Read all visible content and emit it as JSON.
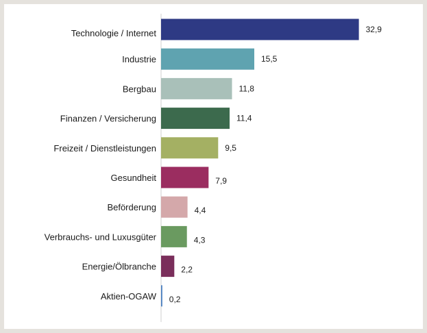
{
  "chart_data": {
    "type": "bar",
    "orientation": "horizontal",
    "title": "",
    "xlabel": "",
    "ylabel": "",
    "xlim": [
      0,
      35
    ],
    "grid": false,
    "legend": "none",
    "categories": [
      "Technologie / Internet",
      "Industrie",
      "Bergbau",
      "Finanzen / Versicherung",
      "Freizeit / Dienstleistungen",
      "Gesundheit",
      "Beförderung",
      "Verbrauchs- und Luxusgüter",
      "Energie/Ölbranche",
      "Aktien-OGAW"
    ],
    "values": [
      32.9,
      15.5,
      11.8,
      11.4,
      9.5,
      7.9,
      4.4,
      4.3,
      2.2,
      0.2
    ],
    "value_labels": [
      "32,9",
      "15,5",
      "11,8",
      "11,4",
      "9,5",
      "7,9",
      "4,4",
      "4,3",
      "2,2",
      "0,2"
    ],
    "colors": [
      "#2e3a84",
      "#5fa3b0",
      "#a9c0b9",
      "#3c6a4d",
      "#a4b063",
      "#9b2d60",
      "#d4a8aa",
      "#6a9a60",
      "#7a2e5b",
      "#4a7fc0"
    ],
    "axis_color": "#cfcfcf"
  }
}
